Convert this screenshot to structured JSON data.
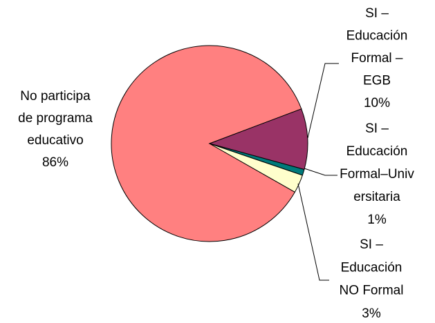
{
  "chart_data": {
    "type": "pie",
    "categories": [
      [
        "No participa",
        "de programa",
        "educativo"
      ],
      [
        "SI –",
        "Educación",
        "Formal –",
        "EGB"
      ],
      [
        "SI –",
        "Educación",
        "Formal–Univ",
        "ersitaria"
      ],
      [
        "SI –",
        "Educación",
        "NO Formal"
      ]
    ],
    "values": [
      86,
      10,
      1,
      3
    ],
    "value_labels": [
      "86%",
      "10%",
      "1%",
      "3%"
    ],
    "colors": [
      "#ff8080",
      "#993366",
      "#007a7a",
      "#ffffcc"
    ]
  }
}
